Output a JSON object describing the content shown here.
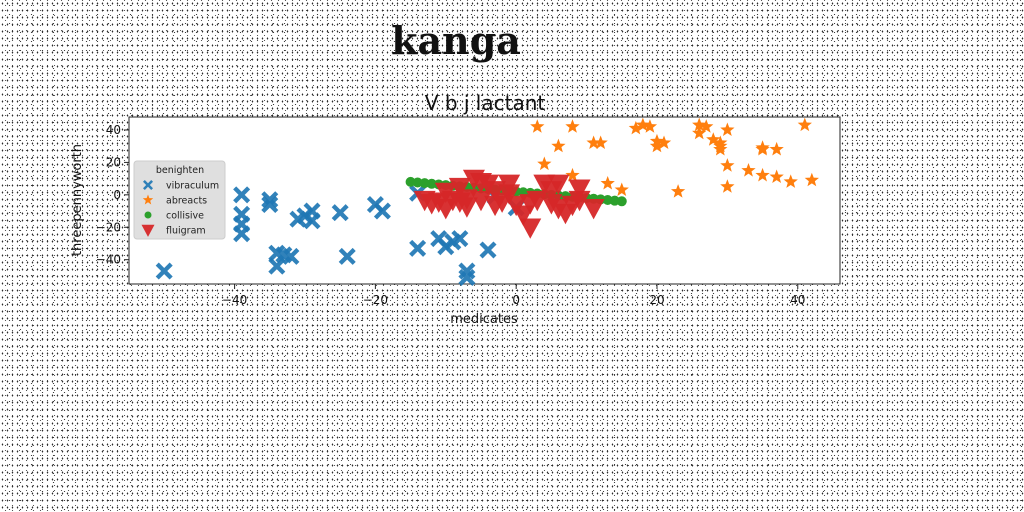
{
  "page_title": "kanga",
  "chart_data": {
    "type": "scatter",
    "title": "V b j lactant",
    "xlabel": "medicates",
    "ylabel": "threepennyworth",
    "xlim": [
      -55,
      46
    ],
    "ylim": [
      -55,
      48
    ],
    "xticks": [
      -40,
      -20,
      0,
      20,
      40
    ],
    "yticks": [
      -40,
      -20,
      0,
      20,
      40
    ],
    "grid": false,
    "legend": {
      "title": "benighten",
      "position": "center-left"
    },
    "series": [
      {
        "name": "vibraculum",
        "marker": "x",
        "color": "#1f77b4",
        "points": [
          [
            -50,
            -47
          ],
          [
            -39,
            0
          ],
          [
            -39,
            -12
          ],
          [
            -39,
            -18
          ],
          [
            -39,
            -24
          ],
          [
            -35,
            -3
          ],
          [
            -35,
            -6
          ],
          [
            -34,
            -36
          ],
          [
            -34,
            -44
          ],
          [
            -33,
            -37
          ],
          [
            -32,
            -38
          ],
          [
            -31,
            -15
          ],
          [
            -30,
            -13
          ],
          [
            -29,
            -10
          ],
          [
            -29,
            -16
          ],
          [
            -25,
            -11
          ],
          [
            -24,
            -38
          ],
          [
            -20,
            -6
          ],
          [
            -19,
            -10
          ],
          [
            -14,
            -33
          ],
          [
            -14,
            1
          ],
          [
            -11,
            -27
          ],
          [
            -10,
            -32
          ],
          [
            -9,
            -29
          ],
          [
            -8,
            -27
          ],
          [
            -7,
            -47
          ],
          [
            -7,
            -51
          ],
          [
            -4,
            -34
          ],
          [
            -3,
            -1
          ],
          [
            0,
            -8
          ]
        ]
      },
      {
        "name": "abreacts",
        "marker": "*",
        "color": "#ff7f0e",
        "points": [
          [
            3,
            42
          ],
          [
            4,
            19
          ],
          [
            6,
            30
          ],
          [
            8,
            42
          ],
          [
            8,
            12
          ],
          [
            11,
            32
          ],
          [
            12,
            32
          ],
          [
            13,
            7
          ],
          [
            15,
            3
          ],
          [
            17,
            41
          ],
          [
            18,
            43
          ],
          [
            19,
            42
          ],
          [
            20,
            33
          ],
          [
            20,
            30
          ],
          [
            21,
            32
          ],
          [
            23,
            2
          ],
          [
            26,
            38
          ],
          [
            26,
            43
          ],
          [
            27,
            42
          ],
          [
            28,
            34
          ],
          [
            29,
            32
          ],
          [
            29,
            30
          ],
          [
            29,
            28
          ],
          [
            30,
            40
          ],
          [
            30,
            5
          ],
          [
            30,
            18
          ],
          [
            33,
            15
          ],
          [
            35,
            29
          ],
          [
            35,
            28
          ],
          [
            35,
            12
          ],
          [
            37,
            28
          ],
          [
            37,
            11
          ],
          [
            39,
            8
          ],
          [
            41,
            43
          ],
          [
            42,
            9
          ]
        ]
      },
      {
        "name": "collisive",
        "marker": "o",
        "color": "#2ca02c",
        "points": [
          [
            -15,
            8
          ],
          [
            -14,
            7.6
          ],
          [
            -13,
            7.2
          ],
          [
            -12,
            6.8
          ],
          [
            -11,
            6.4
          ],
          [
            -10,
            6
          ],
          [
            -9,
            5.6
          ],
          [
            -8,
            5.2
          ],
          [
            -7,
            4.8
          ],
          [
            -6,
            4.4
          ],
          [
            -5,
            4
          ],
          [
            -4,
            3.6
          ],
          [
            -3,
            3.2
          ],
          [
            -2,
            2.8
          ],
          [
            -1,
            2.4
          ],
          [
            0,
            2
          ],
          [
            1,
            1.6
          ],
          [
            2,
            1.2
          ],
          [
            3,
            0.8
          ],
          [
            4,
            0.4
          ],
          [
            5,
            0
          ],
          [
            6,
            -0.4
          ],
          [
            7,
            -0.8
          ],
          [
            8,
            -1.2
          ],
          [
            9,
            -1.6
          ],
          [
            10,
            -2
          ],
          [
            11,
            -2.4
          ],
          [
            12,
            -2.8
          ],
          [
            13,
            -3.2
          ],
          [
            14,
            -3.6
          ],
          [
            15,
            -4
          ]
        ]
      },
      {
        "name": "fluigram",
        "marker": "v",
        "color": "#d62728",
        "points": [
          [
            -13,
            -3
          ],
          [
            -12,
            -5
          ],
          [
            -11,
            -4
          ],
          [
            -10,
            2
          ],
          [
            -10,
            -8
          ],
          [
            -9,
            -3
          ],
          [
            -8,
            -4
          ],
          [
            -8,
            5
          ],
          [
            -7,
            -7
          ],
          [
            -7,
            -2
          ],
          [
            -6,
            10
          ],
          [
            -5,
            8
          ],
          [
            -5,
            -3
          ],
          [
            -4,
            7
          ],
          [
            -3,
            3
          ],
          [
            -3,
            -6
          ],
          [
            -2,
            -4
          ],
          [
            -1,
            1
          ],
          [
            -1,
            7
          ],
          [
            0,
            -6
          ],
          [
            1,
            -12
          ],
          [
            2,
            -20
          ],
          [
            2,
            -5
          ],
          [
            3,
            -3
          ],
          [
            4,
            7
          ],
          [
            5,
            3
          ],
          [
            5,
            -5
          ],
          [
            6,
            7
          ],
          [
            6,
            -8
          ],
          [
            7,
            -11
          ],
          [
            8,
            -6
          ],
          [
            9,
            4
          ],
          [
            9,
            -3
          ],
          [
            11,
            -8
          ]
        ]
      }
    ]
  }
}
